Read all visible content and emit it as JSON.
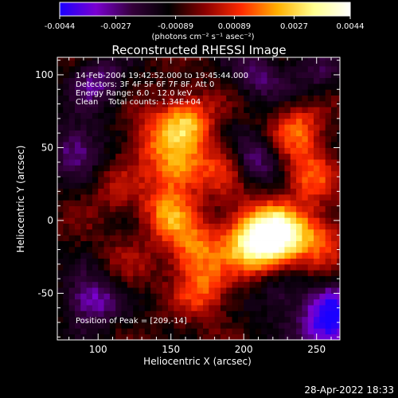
{
  "chart_data": {
    "type": "heatmap",
    "title": "Reconstructed RHESSI Image",
    "xlabel": "Heliocentric X (arcsec)",
    "ylabel": "Heliocentric Y (arcsec)",
    "xlim": [
      72,
      266
    ],
    "ylim": [
      -82,
      112
    ],
    "x_ticks": [
      "100",
      "150",
      "200",
      "250"
    ],
    "y_ticks": [
      "-50",
      "0",
      "50",
      "100"
    ],
    "colorbar": {
      "range": [
        -0.0044,
        0.0044
      ],
      "tick_labels": [
        "-0.0044",
        "-0.0027",
        "-0.00089",
        "0.00089",
        "0.0027",
        "0.0044"
      ],
      "units_label": "(photons cm⁻² s⁻¹ asec⁻²)",
      "colors": [
        "#1a00ff",
        "#7a00d0",
        "#34003a",
        "#000000",
        "#8a0000",
        "#ff2a00",
        "#ffb000",
        "#ffff90",
        "#ffffff"
      ]
    },
    "annotations": {
      "time_range": "14-Feb-2004 19:42:52.000 to 19:45:44.000",
      "detectors": "Detectors: 3F 4F 5F 6F 7F 8F, Att 0",
      "energy_range": "Energy Range: 6.0 - 12.0 keV",
      "clean_counts": "Clean    Total counts: 1.34E+04",
      "peak": "Position of Peak = [209,-14]"
    },
    "peak_position": [
      209,
      -14
    ],
    "features": [
      {
        "x": 209,
        "y": -14,
        "level": 1.0
      },
      {
        "x": 225,
        "y": -10,
        "level": 0.75
      },
      {
        "x": 160,
        "y": 68,
        "level": 0.7
      },
      {
        "x": 155,
        "y": 35,
        "level": 0.6
      },
      {
        "x": 148,
        "y": 5,
        "level": 0.55
      },
      {
        "x": 165,
        "y": -20,
        "level": 0.55
      },
      {
        "x": 188,
        "y": 38,
        "level": 0.45
      },
      {
        "x": 238,
        "y": 62,
        "level": 0.5
      },
      {
        "x": 245,
        "y": 30,
        "level": 0.45
      },
      {
        "x": 252,
        "y": -12,
        "level": 0.45
      },
      {
        "x": 172,
        "y": -48,
        "level": 0.45
      },
      {
        "x": 135,
        "y": 55,
        "level": 0.35
      },
      {
        "x": 110,
        "y": 20,
        "level": 0.2
      },
      {
        "x": 240,
        "y": -58,
        "level": 0.3
      },
      {
        "x": 120,
        "y": -30,
        "level": 0.15
      },
      {
        "x": 85,
        "y": 50,
        "level": -0.5
      },
      {
        "x": 95,
        "y": -55,
        "level": -0.6
      },
      {
        "x": 258,
        "y": -68,
        "level": -0.95
      },
      {
        "x": 205,
        "y": 42,
        "level": -0.55
      },
      {
        "x": 210,
        "y": 102,
        "level": -0.4
      },
      {
        "x": 100,
        "y": 95,
        "level": -0.45
      },
      {
        "x": 225,
        "y": -52,
        "level": -0.45
      },
      {
        "x": 250,
        "y": 100,
        "level": -0.3
      }
    ]
  },
  "footer": {
    "timestamp": "28-Apr-2022 18:33"
  }
}
